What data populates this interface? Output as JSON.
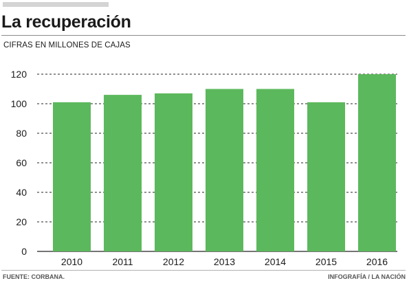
{
  "header": {
    "title": "La recuperación",
    "subtitle": "CIFRAS EN MILLONES DE CAJAS"
  },
  "footer": {
    "source": "FUENTE: CORBANA.",
    "credit": "INFOGRAFÍA / LA NACIÓN"
  },
  "colors": {
    "bar": "#5cb85c",
    "grid": "#222222",
    "title_bar": "#d4d4d4"
  },
  "chart_data": {
    "type": "bar",
    "categories": [
      "2010",
      "2011",
      "2012",
      "2013",
      "2014",
      "2015",
      "2016"
    ],
    "values": [
      101,
      106,
      107,
      110,
      110,
      101,
      120
    ],
    "title": "La recuperación",
    "subtitle": "CIFRAS EN MILLONES DE CAJAS",
    "xlabel": "",
    "ylabel": "",
    "ylim": [
      0,
      120
    ],
    "yticks": [
      0,
      20,
      40,
      60,
      80,
      100,
      120
    ],
    "grid": true,
    "grid_style": "dashed",
    "legend": "none"
  }
}
